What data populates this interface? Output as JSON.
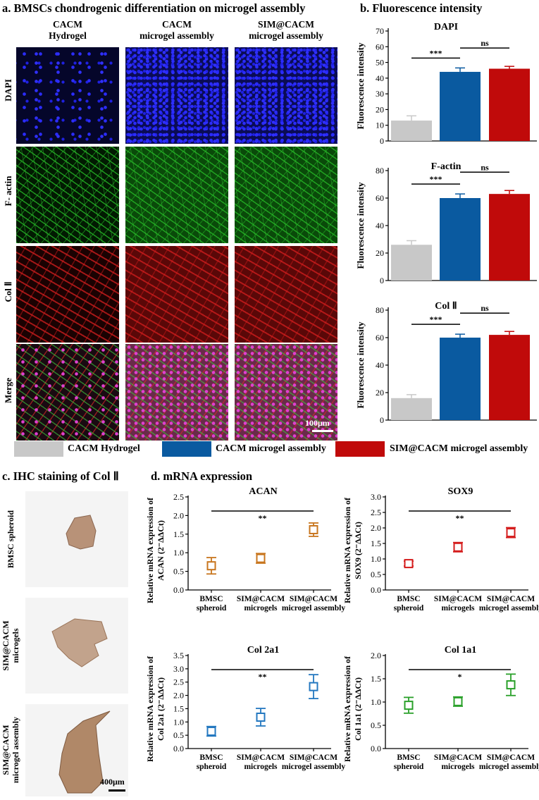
{
  "panel_a": {
    "title": "a. BMSCs chondrogenic differentiation on microgel assembly",
    "columns": [
      {
        "line1": "CACM",
        "line2": "Hydrogel"
      },
      {
        "line1": "CACM",
        "line2": "microgel assembly"
      },
      {
        "line1": "SIM@CACM",
        "line2": "microgel assembly"
      }
    ],
    "rows": [
      "DAPI",
      "F- actin",
      "Col Ⅱ",
      "Merge"
    ],
    "scale_bar": "100μm"
  },
  "panel_b": {
    "title": "b. Fluorescence intensity"
  },
  "legend": [
    {
      "label": "CACM  Hydrogel",
      "color": "#c8c8c8"
    },
    {
      "label": "CACM microgel assembly",
      "color": "#0a5aa0"
    },
    {
      "label": "SIM@CACM microgel assembly",
      "color": "#c00a0a"
    }
  ],
  "panel_c": {
    "title": "c. IHC staining of Col Ⅱ",
    "labels": [
      [
        "BMSC spheroid"
      ],
      [
        "SIM@CACM",
        "microgels"
      ],
      [
        "SIM@CACM",
        "microgel assembly"
      ]
    ],
    "scale_bar": "400μm"
  },
  "panel_d": {
    "title": "d. mRNA expression"
  },
  "colors": {
    "gray": "#c8c8c8",
    "blue": "#0a5aa0",
    "red": "#c00a0a",
    "orange": "#c8761e",
    "crimson": "#d41c1c",
    "steel": "#2478c0",
    "green": "#2aa02a"
  },
  "chart_data": [
    {
      "type": "bar",
      "title": "DAPI",
      "ylabel": "Fluorescence intensity",
      "ylim": [
        0,
        70
      ],
      "yticks": [
        0,
        10,
        20,
        30,
        40,
        50,
        60,
        70
      ],
      "categories": [
        "CACM  Hydrogel",
        "CACM microgel assembly",
        "SIM@CACM microgel assembly"
      ],
      "values": [
        13,
        44,
        46
      ],
      "errors": [
        3,
        2.5,
        1.5
      ],
      "colors": [
        "#c8c8c8",
        "#0a5aa0",
        "#c00a0a"
      ],
      "annotations": [
        {
          "text": "***",
          "from": 0,
          "to": 1
        },
        {
          "text": "ns",
          "from": 1,
          "to": 2
        }
      ]
    },
    {
      "type": "bar",
      "title": "F-actin",
      "ylabel": "Fluorescence intensity",
      "ylim": [
        0,
        80
      ],
      "yticks": [
        0,
        20,
        40,
        60,
        80
      ],
      "categories": [
        "CACM  Hydrogel",
        "CACM microgel assembly",
        "SIM@CACM microgel assembly"
      ],
      "values": [
        26,
        60,
        63
      ],
      "errors": [
        3,
        3,
        2.5
      ],
      "colors": [
        "#c8c8c8",
        "#0a5aa0",
        "#c00a0a"
      ],
      "annotations": [
        {
          "text": "***",
          "from": 0,
          "to": 1
        },
        {
          "text": "ns",
          "from": 1,
          "to": 2
        }
      ]
    },
    {
      "type": "bar",
      "title": "Col Ⅱ",
      "ylabel": "Fluorescence intensity",
      "ylim": [
        0,
        80
      ],
      "yticks": [
        0,
        20,
        40,
        60,
        80
      ],
      "categories": [
        "CACM  Hydrogel",
        "CACM microgel assembly",
        "SIM@CACM microgel assembly"
      ],
      "values": [
        16,
        60,
        62
      ],
      "errors": [
        2.5,
        2.5,
        2.5
      ],
      "colors": [
        "#c8c8c8",
        "#0a5aa0",
        "#c00a0a"
      ],
      "annotations": [
        {
          "text": "***",
          "from": 0,
          "to": 1
        },
        {
          "text": "ns",
          "from": 1,
          "to": 2
        }
      ]
    },
    {
      "type": "scatter",
      "title": "ACAN",
      "ylabel": "Relative mRNA expression of",
      "ylabel2": "ACAN (2⁻ΔΔCt)",
      "ylim": [
        0,
        2.5
      ],
      "yticks": [
        "0.0",
        "0.5",
        "1.0",
        "1.5",
        "2.0",
        "2.5"
      ],
      "categories": [
        [
          "BMSC",
          "spheroid"
        ],
        [
          "SIM@CACM",
          "microgels"
        ],
        [
          "SIM@CACM",
          "microgel assembly"
        ]
      ],
      "values": [
        0.65,
        0.85,
        1.62
      ],
      "errors": [
        0.22,
        0.13,
        0.18
      ],
      "color": "#c8761e",
      "annotations": [
        {
          "text": "**",
          "from": 0,
          "to": 2
        }
      ]
    },
    {
      "type": "scatter",
      "title": "SOX9",
      "ylabel": "Relative mRNA expression of",
      "ylabel2": "SOX9 (2⁻ΔΔCt)",
      "ylim": [
        0,
        3.0
      ],
      "yticks": [
        "0.0",
        "0.5",
        "1.0",
        "1.5",
        "2.0",
        "2.5",
        "3.0"
      ],
      "categories": [
        [
          "BMSC",
          "spheroid"
        ],
        [
          "SIM@CACM",
          "microgels"
        ],
        [
          "SIM@CACM",
          "microgel assembly"
        ]
      ],
      "values": [
        0.85,
        1.38,
        1.85
      ],
      "errors": [
        0.08,
        0.15,
        0.16
      ],
      "color": "#d41c1c",
      "annotations": [
        {
          "text": "**",
          "from": 0,
          "to": 2
        }
      ]
    },
    {
      "type": "scatter",
      "title": "Col 2a1",
      "ylabel": "Relative mRNA expression of",
      "ylabel2": "Col 2a1 (2⁻ΔΔCt)",
      "ylim": [
        0,
        3.5
      ],
      "yticks": [
        "0.0",
        "0.5",
        "1.0",
        "1.5",
        "2.0",
        "2.5",
        "3.0",
        "3.5"
      ],
      "categories": [
        [
          "BMSC",
          "spheroid"
        ],
        [
          "SIM@CACM",
          "microgels"
        ],
        [
          "SIM@CACM",
          "microgel assembly"
        ]
      ],
      "values": [
        0.65,
        1.18,
        2.33
      ],
      "errors": [
        0.18,
        0.33,
        0.45
      ],
      "color": "#2478c0",
      "annotations": [
        {
          "text": "**",
          "from": 0,
          "to": 2
        }
      ]
    },
    {
      "type": "scatter",
      "title": "Col 1a1",
      "ylabel": "Relative mRNA expression of",
      "ylabel2": "Col 1a1 (2⁻ΔΔCt)",
      "ylim": [
        0,
        2.0
      ],
      "yticks": [
        "0.0",
        "0.5",
        "1.0",
        "1.5",
        "2.0"
      ],
      "categories": [
        [
          "BMSC",
          "spheroid"
        ],
        [
          "SIM@CACM",
          "microgels"
        ],
        [
          "SIM@CACM",
          "microgel assembly"
        ]
      ],
      "values": [
        0.93,
        1.01,
        1.37
      ],
      "errors": [
        0.17,
        0.1,
        0.23
      ],
      "color": "#2aa02a",
      "annotations": [
        {
          "text": "*",
          "from": 0,
          "to": 2
        }
      ]
    }
  ]
}
